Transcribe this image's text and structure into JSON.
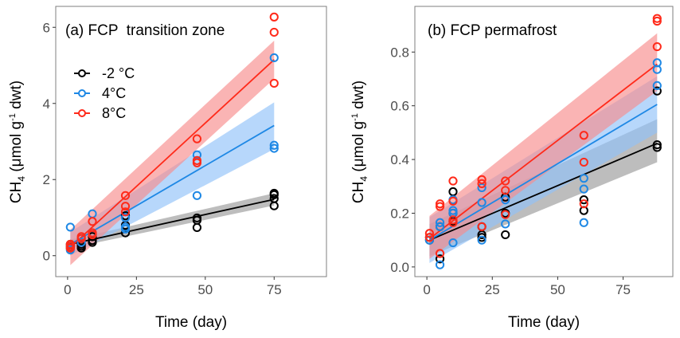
{
  "chart_data": [
    {
      "type": "scatter",
      "title": "(a) FCP  transition zone",
      "xlabel": "Time (day)",
      "ylabel": "CH4 (μmol g-1 dwt)",
      "ylabel_parts": {
        "main": "CH",
        "sub": "4",
        "mid": " (μmol g",
        "sup": "-1",
        "end": " dwt)"
      },
      "xlim": [
        -4.3,
        94
      ],
      "ylim": [
        -0.55,
        6.55
      ],
      "xticks": [
        0,
        25,
        50,
        75
      ],
      "xtick_labels": [
        "0",
        "25",
        "50",
        "75"
      ],
      "yticks": [
        0,
        2,
        4,
        6
      ],
      "ytick_labels": [
        "0",
        "2",
        "4",
        "6"
      ],
      "grid": false,
      "legend": {
        "placement": "top-left",
        "entries": [
          {
            "label": "-2 °C",
            "series": "-2 °C"
          },
          {
            "label": "4°C",
            "series": "4°C"
          },
          {
            "label": "8°C",
            "series": "8°C"
          }
        ]
      },
      "series": [
        {
          "name": "-2 °C",
          "color": "#000000",
          "band_color": "#999999",
          "points": [
            [
              1,
              0.2
            ],
            [
              1,
              0.25
            ],
            [
              1,
              0.3
            ],
            [
              5,
              0.2
            ],
            [
              5,
              0.25
            ],
            [
              5,
              0.3
            ],
            [
              9,
              0.35
            ],
            [
              9,
              0.4
            ],
            [
              9,
              0.5
            ],
            [
              21,
              0.6
            ],
            [
              21,
              0.8
            ],
            [
              21,
              1.05
            ],
            [
              47,
              0.74
            ],
            [
              47,
              0.93
            ],
            [
              47,
              0.99
            ],
            [
              75,
              1.31
            ],
            [
              75,
              1.5
            ],
            [
              75,
              1.6
            ],
            [
              75,
              1.64
            ]
          ],
          "fit": {
            "x": [
              1,
              75
            ],
            "y": [
              0.3,
              1.48
            ]
          },
          "ci": {
            "x": [
              1,
              75
            ],
            "lower": [
              0.2,
              1.32
            ],
            "upper": [
              0.42,
              1.64
            ]
          }
        },
        {
          "name": "4°C",
          "color": "#1E88E5",
          "band_color": "#90C2F9",
          "points": [
            [
              1,
              0.15
            ],
            [
              1,
              0.75
            ],
            [
              5,
              0.35
            ],
            [
              5,
              0.45
            ],
            [
              9,
              0.6
            ],
            [
              9,
              1.1
            ],
            [
              21,
              0.7
            ],
            [
              21,
              0.75
            ],
            [
              21,
              1.0
            ],
            [
              47,
              1.58
            ],
            [
              47,
              2.65
            ],
            [
              75,
              2.82
            ],
            [
              75,
              2.9
            ],
            [
              75,
              5.2
            ]
          ],
          "fit": {
            "x": [
              1,
              75
            ],
            "y": [
              0.3,
              3.42
            ]
          },
          "ci": {
            "x": [
              1,
              75
            ],
            "lower": [
              0.0,
              2.8
            ],
            "upper": [
              0.62,
              4.03
            ]
          }
        },
        {
          "name": "8°C",
          "color": "#FF2A1A",
          "band_color": "#F88C8C",
          "points": [
            [
              1,
              0.2
            ],
            [
              1,
              0.25
            ],
            [
              1,
              0.3
            ],
            [
              5,
              0.45
            ],
            [
              5,
              0.5
            ],
            [
              9,
              0.55
            ],
            [
              9,
              0.6
            ],
            [
              9,
              0.9
            ],
            [
              21,
              1.15
            ],
            [
              21,
              1.3
            ],
            [
              21,
              1.58
            ],
            [
              47,
              2.44
            ],
            [
              47,
              2.5
            ],
            [
              47,
              3.07
            ],
            [
              75,
              4.53
            ],
            [
              75,
              5.87
            ],
            [
              75,
              6.27
            ]
          ],
          "fit": {
            "x": [
              1,
              75
            ],
            "y": [
              0.22,
              5.15
            ]
          },
          "ci": {
            "x": [
              1,
              75
            ],
            "lower": [
              -0.25,
              4.65
            ],
            "upper": [
              0.68,
              5.65
            ]
          }
        }
      ]
    },
    {
      "type": "scatter",
      "title": "(b) FCP permafrost",
      "xlabel": "Time (day)",
      "ylabel": "CH4 (μmol g-1 dwt)",
      "ylabel_parts": {
        "main": "CH",
        "sub": "4",
        "mid": " (μmol g",
        "sup": "-1",
        "end": " dwt)"
      },
      "xlim": [
        -4.6,
        94
      ],
      "ylim": [
        -0.036,
        0.97
      ],
      "xticks": [
        0,
        25,
        50,
        75
      ],
      "xtick_labels": [
        "0",
        "25",
        "50",
        "75"
      ],
      "yticks": [
        0.0,
        0.2,
        0.4,
        0.6,
        0.8
      ],
      "ytick_labels": [
        "0.0",
        "0.2",
        "0.4",
        "0.6",
        "0.8"
      ],
      "grid": false,
      "series": [
        {
          "name": "-2 °C",
          "color": "#000000",
          "band_color": "#999999",
          "points": [
            [
              1,
              0.1
            ],
            [
              1,
              0.11
            ],
            [
              5,
              0.03
            ],
            [
              5,
              0.15
            ],
            [
              10,
              0.17
            ],
            [
              10,
              0.2
            ],
            [
              10,
              0.28
            ],
            [
              21,
              0.11
            ],
            [
              21,
              0.12
            ],
            [
              21,
              0.15
            ],
            [
              30,
              0.12
            ],
            [
              30,
              0.2
            ],
            [
              30,
              0.26
            ],
            [
              60,
              0.21
            ],
            [
              60,
              0.25
            ],
            [
              88,
              0.445
            ],
            [
              88,
              0.455
            ],
            [
              88,
              0.655
            ]
          ],
          "fit": {
            "x": [
              1,
              88
            ],
            "y": [
              0.1,
              0.46
            ]
          },
          "ci": {
            "x": [
              1,
              88
            ],
            "lower": [
              0.04,
              0.39
            ],
            "upper": [
              0.16,
              0.55
            ]
          }
        },
        {
          "name": "4°C",
          "color": "#1E88E5",
          "band_color": "#90C2F9",
          "points": [
            [
              1,
              0.1
            ],
            [
              5,
              0.008
            ],
            [
              5,
              0.15
            ],
            [
              5,
              0.165
            ],
            [
              10,
              0.09
            ],
            [
              10,
              0.2
            ],
            [
              10,
              0.21
            ],
            [
              10,
              0.25
            ],
            [
              21,
              0.1
            ],
            [
              21,
              0.24
            ],
            [
              21,
              0.295
            ],
            [
              30,
              0.16
            ],
            [
              30,
              0.25
            ],
            [
              60,
              0.165
            ],
            [
              60,
              0.29
            ],
            [
              60,
              0.33
            ],
            [
              88,
              0.675
            ],
            [
              88,
              0.735
            ],
            [
              88,
              0.76
            ]
          ],
          "fit": {
            "x": [
              1,
              88
            ],
            "y": [
              0.1,
              0.605
            ]
          },
          "ci": {
            "x": [
              1,
              88
            ],
            "lower": [
              0.015,
              0.5
            ],
            "upper": [
              0.185,
              0.71
            ]
          }
        },
        {
          "name": "8°C",
          "color": "#FF2A1A",
          "band_color": "#F88C8C",
          "points": [
            [
              1,
              0.11
            ],
            [
              1,
              0.125
            ],
            [
              5,
              0.05
            ],
            [
              5,
              0.225
            ],
            [
              5,
              0.235
            ],
            [
              10,
              0.165
            ],
            [
              10,
              0.175
            ],
            [
              10,
              0.245
            ],
            [
              10,
              0.32
            ],
            [
              21,
              0.15
            ],
            [
              21,
              0.31
            ],
            [
              21,
              0.325
            ],
            [
              30,
              0.195
            ],
            [
              30,
              0.285
            ],
            [
              30,
              0.32
            ],
            [
              60,
              0.235
            ],
            [
              60,
              0.39
            ],
            [
              60,
              0.49
            ],
            [
              88,
              0.82
            ],
            [
              88,
              0.915
            ],
            [
              88,
              0.925
            ]
          ],
          "fit": {
            "x": [
              1,
              88
            ],
            "y": [
              0.105,
              0.755
            ]
          },
          "ci": {
            "x": [
              1,
              88
            ],
            "lower": [
              0.03,
              0.655
            ],
            "upper": [
              0.19,
              0.87
            ]
          }
        }
      ]
    }
  ]
}
